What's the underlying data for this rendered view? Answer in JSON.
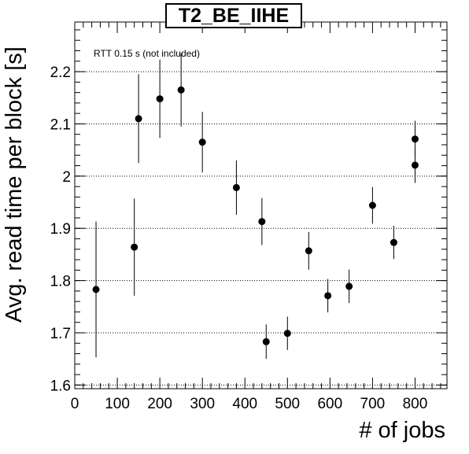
{
  "chart_data": {
    "type": "scatter",
    "title": "T2_BE_IIHE",
    "xlabel": "# of jobs",
    "ylabel": "Avg. read time per block [s]",
    "annotation": "RTT 0.15 s (not included)",
    "xlim": [
      0,
      875
    ],
    "ylim": [
      1.593,
      2.295
    ],
    "xticks": [
      0,
      100,
      200,
      300,
      400,
      500,
      600,
      700,
      800
    ],
    "yticks": [
      1.6,
      1.7,
      1.8,
      1.9,
      2.0,
      2.1,
      2.2
    ],
    "ytick_labels": [
      "1.6",
      "1.7",
      "1.8",
      "1.9",
      "2",
      "2.1",
      "2.2"
    ],
    "grid_y": true,
    "grid_x": false,
    "marker_color": "#000000",
    "points": [
      {
        "x": 50,
        "y": 1.783,
        "err": 0.13
      },
      {
        "x": 140,
        "y": 1.864,
        "err": 0.093
      },
      {
        "x": 150,
        "y": 2.11,
        "err": 0.085
      },
      {
        "x": 200,
        "y": 2.148,
        "err": 0.075
      },
      {
        "x": 250,
        "y": 2.165,
        "err": 0.07
      },
      {
        "x": 300,
        "y": 2.065,
        "err": 0.058
      },
      {
        "x": 380,
        "y": 1.978,
        "err": 0.052
      },
      {
        "x": 440,
        "y": 1.913,
        "err": 0.045
      },
      {
        "x": 450,
        "y": 1.683,
        "err": 0.033
      },
      {
        "x": 500,
        "y": 1.699,
        "err": 0.032
      },
      {
        "x": 550,
        "y": 1.857,
        "err": 0.036
      },
      {
        "x": 595,
        "y": 1.771,
        "err": 0.032
      },
      {
        "x": 645,
        "y": 1.789,
        "err": 0.032
      },
      {
        "x": 700,
        "y": 1.944,
        "err": 0.035
      },
      {
        "x": 750,
        "y": 1.873,
        "err": 0.032
      },
      {
        "x": 800,
        "y": 2.021,
        "err": 0.034
      },
      {
        "x": 800,
        "y": 2.071,
        "err": 0.035
      }
    ]
  }
}
